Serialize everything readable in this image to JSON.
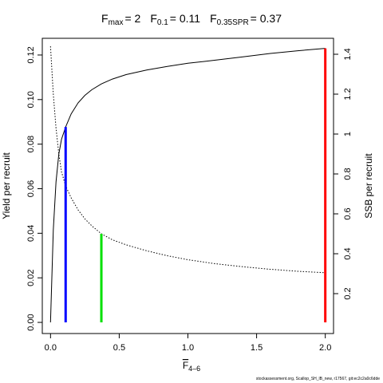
{
  "chart_data": {
    "type": "line",
    "title": {
      "fmax_label": "F",
      "fmax_sub": "max",
      "fmax_value": "= 2",
      "f01_label": "F",
      "f01_sub": "0.1",
      "f01_value": "= 0.11",
      "fspr_label": "F",
      "fspr_sub": "0.35SPR",
      "fspr_value": "= 0.37"
    },
    "xlabel": {
      "base": "F",
      "sub": "4–6"
    },
    "ylabel_left": "Yield per recruit",
    "ylabel_right": "SSB per recruit",
    "xlim": [
      -0.06,
      2.06
    ],
    "ylim_left": [
      -0.005,
      0.1275
    ],
    "ylim_right": [
      0,
      1.48
    ],
    "x_ticks": [
      0,
      0.5,
      1,
      1.5,
      2
    ],
    "x_tick_labels": [
      "0.0",
      "0.5",
      "1.0",
      "1.5",
      "2.0"
    ],
    "y_left_ticks": [
      0,
      0.02,
      0.04,
      0.06,
      0.08,
      0.1,
      0.12
    ],
    "y_left_tick_labels": [
      "0.00",
      "0.02",
      "0.04",
      "0.06",
      "0.08",
      "0.10",
      "0.12"
    ],
    "y_right_ticks": [
      0.2,
      0.4,
      0.6,
      0.8,
      1,
      1.2,
      1.4
    ],
    "y_right_tick_labels": [
      "0.2",
      "0.4",
      "0.6",
      "0.8",
      "1",
      "1.2",
      "1.4"
    ],
    "series": [
      {
        "axis": "left",
        "style": "solid",
        "color": "#000000",
        "x": [
          0,
          0.02,
          0.04,
          0.06,
          0.08,
          0.11,
          0.15,
          0.2,
          0.25,
          0.3,
          0.37,
          0.45,
          0.55,
          0.7,
          0.85,
          1.0,
          1.2,
          1.4,
          1.6,
          1.8,
          2.0
        ],
        "y": [
          0,
          0.0415,
          0.063,
          0.0755,
          0.0822,
          0.0877,
          0.0936,
          0.0985,
          0.1019,
          0.1044,
          0.107,
          0.1092,
          0.1112,
          0.1133,
          0.1149,
          0.1163,
          0.1177,
          0.1192,
          0.1207,
          0.1219,
          0.123
        ]
      },
      {
        "axis": "right",
        "style": "dotted",
        "color": "#000000",
        "x": [
          0,
          0.02,
          0.04,
          0.06,
          0.08,
          0.11,
          0.15,
          0.2,
          0.25,
          0.3,
          0.37,
          0.45,
          0.55,
          0.7,
          0.85,
          1.0,
          1.2,
          1.4,
          1.6,
          1.8,
          2.0
        ],
        "y": [
          1.44,
          1.2,
          1.03,
          0.9,
          0.81,
          0.74,
          0.68,
          0.62,
          0.575,
          0.54,
          0.5,
          0.47,
          0.445,
          0.415,
          0.39,
          0.37,
          0.35,
          0.335,
          0.322,
          0.312,
          0.305
        ]
      }
    ],
    "reference_lines": [
      {
        "name": "F0.1",
        "x": 0.11,
        "y": 0.0877,
        "axis": "left",
        "color": "#0000ff"
      },
      {
        "name": "F0.35SPR",
        "x": 0.37,
        "y": 0.5,
        "axis": "right",
        "color": "#00e000"
      },
      {
        "name": "Fmax",
        "x": 2.0,
        "y": 0.123,
        "axis": "left",
        "color": "#ff0000"
      }
    ],
    "grid": false,
    "footnote": "stockassessment.org, Scallop_SH_lB_new, r17567, git:ec2c2a0c6dde"
  }
}
